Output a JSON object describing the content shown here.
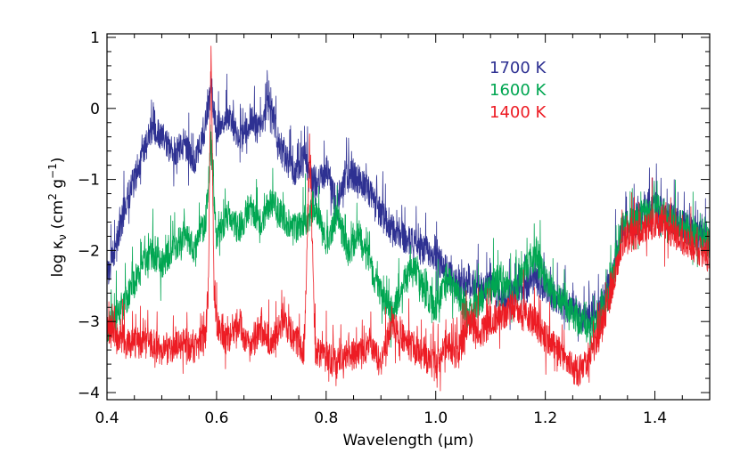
{
  "chart_data": {
    "type": "line",
    "xlabel": "Wavelength (μm)",
    "ylabel_main": "log κ",
    "ylabel_sub": "ν",
    "ylabel_units_pre": "(cm",
    "ylabel_units_sup1": "2",
    "ylabel_units_mid": " g",
    "ylabel_units_sup2": "−1",
    "ylabel_units_post": ")",
    "xlim": [
      0.4,
      1.5
    ],
    "ylim": [
      -4.1,
      1.05
    ],
    "x_ticks": [
      0.4,
      0.6,
      0.8,
      1.0,
      1.2,
      1.4
    ],
    "x_tick_labels": [
      "0.4",
      "0.6",
      "0.8",
      "1.0",
      "1.2",
      "1.4"
    ],
    "y_ticks": [
      -4,
      -3,
      -2,
      -1,
      0,
      1
    ],
    "y_tick_labels": [
      "−4",
      "−3",
      "−2",
      "−1",
      "0",
      "1"
    ],
    "grid": false,
    "legend_position": "top-right",
    "series": [
      {
        "name": "1700 K",
        "color": "#2e3192",
        "noise": 0.22,
        "x": [
          0.4,
          0.42,
          0.44,
          0.46,
          0.48,
          0.5,
          0.52,
          0.54,
          0.56,
          0.58,
          0.59,
          0.6,
          0.62,
          0.64,
          0.66,
          0.68,
          0.7,
          0.71,
          0.72,
          0.74,
          0.76,
          0.78,
          0.8,
          0.82,
          0.84,
          0.86,
          0.88,
          0.9,
          0.92,
          0.94,
          0.96,
          0.98,
          1.0,
          1.02,
          1.04,
          1.06,
          1.08,
          1.1,
          1.12,
          1.14,
          1.16,
          1.18,
          1.2,
          1.22,
          1.24,
          1.26,
          1.28,
          1.3,
          1.32,
          1.34,
          1.36,
          1.38,
          1.4,
          1.42,
          1.44,
          1.46,
          1.48,
          1.5
        ],
        "y": [
          -2.4,
          -1.8,
          -1.2,
          -0.8,
          -0.3,
          -0.4,
          -0.6,
          -0.5,
          -0.8,
          -0.2,
          0.3,
          -0.3,
          -0.1,
          -0.4,
          -0.2,
          -0.3,
          0.1,
          -0.4,
          -0.6,
          -0.9,
          -0.7,
          -1.1,
          -0.9,
          -1.4,
          -0.9,
          -1.0,
          -1.2,
          -1.5,
          -1.7,
          -1.8,
          -1.9,
          -2.0,
          -2.1,
          -2.3,
          -2.5,
          -2.4,
          -2.6,
          -2.5,
          -2.7,
          -2.6,
          -2.5,
          -2.4,
          -2.5,
          -2.7,
          -2.8,
          -2.9,
          -3.0,
          -2.8,
          -2.4,
          -1.7,
          -1.6,
          -1.5,
          -1.4,
          -1.5,
          -1.6,
          -1.7,
          -1.8,
          -1.9
        ]
      },
      {
        "name": "1600 K",
        "color": "#00a651",
        "noise": 0.22,
        "x": [
          0.4,
          0.42,
          0.44,
          0.46,
          0.48,
          0.5,
          0.52,
          0.54,
          0.56,
          0.58,
          0.59,
          0.6,
          0.62,
          0.64,
          0.66,
          0.68,
          0.7,
          0.72,
          0.74,
          0.76,
          0.78,
          0.8,
          0.82,
          0.84,
          0.86,
          0.88,
          0.9,
          0.92,
          0.94,
          0.96,
          0.98,
          1.0,
          1.02,
          1.04,
          1.06,
          1.08,
          1.1,
          1.12,
          1.14,
          1.16,
          1.18,
          1.2,
          1.22,
          1.24,
          1.26,
          1.28,
          1.3,
          1.32,
          1.34,
          1.36,
          1.38,
          1.4,
          1.42,
          1.44,
          1.46,
          1.48,
          1.5
        ],
        "y": [
          -3.1,
          -2.9,
          -2.6,
          -2.3,
          -2.0,
          -2.2,
          -2.0,
          -1.8,
          -2.0,
          -1.6,
          -0.5,
          -1.8,
          -1.5,
          -1.7,
          -1.4,
          -1.6,
          -1.3,
          -1.5,
          -1.7,
          -1.6,
          -1.4,
          -1.9,
          -1.5,
          -2.0,
          -1.8,
          -2.2,
          -2.6,
          -2.9,
          -2.5,
          -2.2,
          -2.6,
          -2.8,
          -2.4,
          -2.6,
          -2.9,
          -2.7,
          -2.5,
          -2.4,
          -2.6,
          -2.3,
          -2.1,
          -2.4,
          -2.7,
          -2.8,
          -3.0,
          -3.1,
          -3.0,
          -2.5,
          -1.7,
          -1.6,
          -1.5,
          -1.4,
          -1.5,
          -1.6,
          -1.7,
          -1.8,
          -1.9
        ]
      },
      {
        "name": "1400 K",
        "color": "#ed1c24",
        "noise": 0.22,
        "x": [
          0.4,
          0.42,
          0.44,
          0.46,
          0.48,
          0.5,
          0.52,
          0.54,
          0.56,
          0.58,
          0.585,
          0.59,
          0.595,
          0.6,
          0.62,
          0.64,
          0.66,
          0.68,
          0.7,
          0.72,
          0.74,
          0.76,
          0.77,
          0.78,
          0.8,
          0.82,
          0.84,
          0.86,
          0.88,
          0.9,
          0.92,
          0.94,
          0.96,
          0.98,
          1.0,
          1.02,
          1.04,
          1.06,
          1.08,
          1.1,
          1.12,
          1.14,
          1.16,
          1.18,
          1.2,
          1.22,
          1.24,
          1.26,
          1.28,
          1.3,
          1.32,
          1.34,
          1.36,
          1.38,
          1.4,
          1.42,
          1.44,
          1.46,
          1.48,
          1.5
        ],
        "y": [
          -3.1,
          -3.2,
          -3.3,
          -3.3,
          -3.3,
          -3.4,
          -3.4,
          -3.3,
          -3.4,
          -3.2,
          -2.5,
          1.0,
          -2.5,
          -3.0,
          -3.3,
          -3.0,
          -3.4,
          -3.1,
          -3.3,
          -3.0,
          -3.2,
          -3.4,
          -0.5,
          -3.4,
          -3.5,
          -3.6,
          -3.4,
          -3.5,
          -3.3,
          -3.6,
          -3.0,
          -3.2,
          -3.4,
          -3.5,
          -3.6,
          -3.3,
          -3.5,
          -3.0,
          -3.2,
          -3.0,
          -2.9,
          -2.8,
          -2.9,
          -3.0,
          -3.2,
          -3.4,
          -3.6,
          -3.7,
          -3.5,
          -3.2,
          -2.6,
          -1.9,
          -1.8,
          -1.7,
          -1.6,
          -1.7,
          -1.8,
          -1.9,
          -2.0,
          -2.1
        ]
      }
    ]
  }
}
